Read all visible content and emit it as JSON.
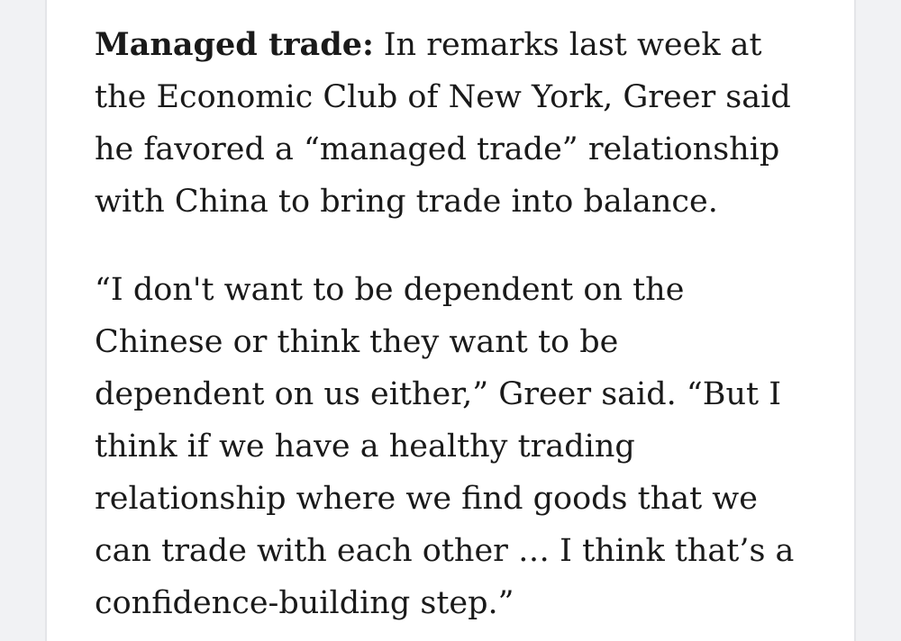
{
  "theme": {
    "background": "#ffffff",
    "gutter": "#f1f2f4",
    "divider": "#e4e5e8",
    "text": "#1a1a1a"
  },
  "article": {
    "paragraphs": [
      {
        "lead": "Managed trade:",
        "lines": [
          "In remarks last week at",
          "the Economic Club of New York, Greer said",
          "he favored a “managed trade” relationship",
          "with China to bring trade into balance."
        ]
      },
      {
        "lines": [
          "“I don't want to be dependent on the",
          "Chinese or think they want to be",
          "dependent on us either,” Greer said. “But I",
          "think if we have a healthy trading",
          "relationship where we find goods that we",
          "can trade with each other … I think that’s a",
          "confidence-building step.”"
        ]
      }
    ]
  }
}
